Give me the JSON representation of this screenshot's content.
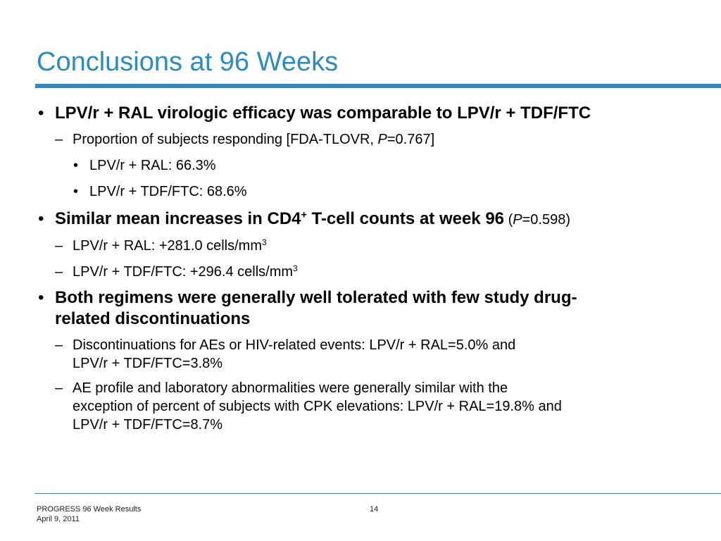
{
  "slide": {
    "title": "Conclusions at 96 Weeks",
    "accent_color": "#2e8bc0"
  },
  "bullets": {
    "b1": {
      "text": "LPV/r + RAL virologic efficacy was comparable to LPV/r + TDF/FTC",
      "sub1": {
        "prefix": "Proportion of subjects responding [FDA-TLOVR, ",
        "p": "P",
        "suffix": "=0.767]",
        "items": [
          "LPV/r + RAL: 66.3%",
          "LPV/r + TDF/FTC: 68.6%"
        ]
      }
    },
    "b2": {
      "text_before_sup": "Similar mean increases in CD4",
      "sup": "+",
      "text_after_sup": " T-cell counts at week 96",
      "paren_open": " (",
      "p": "P",
      "paren_rest": "=0.598)",
      "sub1_text": "LPV/r + RAL: +281.0 cells/mm",
      "sub1_sup": "3",
      "sub2_text": "LPV/r + TDF/FTC: +296.4 cells/mm",
      "sub2_sup": "3"
    },
    "b3": {
      "line1": "Both regimens were generally well tolerated with few study drug-",
      "line2": "related discontinuations",
      "sub1_line1": "Discontinuations for AEs or HIV-related events: LPV/r + RAL=5.0% and",
      "sub1_line2": "LPV/r + TDF/FTC=3.8%",
      "sub2_line1": "AE profile and laboratory abnormalities were generally similar with the",
      "sub2_line2": "exception of percent of subjects with CPK elevations: LPV/r + RAL=19.8% and",
      "sub2_line3": "LPV/r + TDF/FTC=8.7%"
    }
  },
  "footer": {
    "line1": "PROGRESS 96 Week Results",
    "line2": "April 9, 2011",
    "page": "14"
  },
  "symbols": {
    "bullet": "•",
    "dash": "–"
  }
}
